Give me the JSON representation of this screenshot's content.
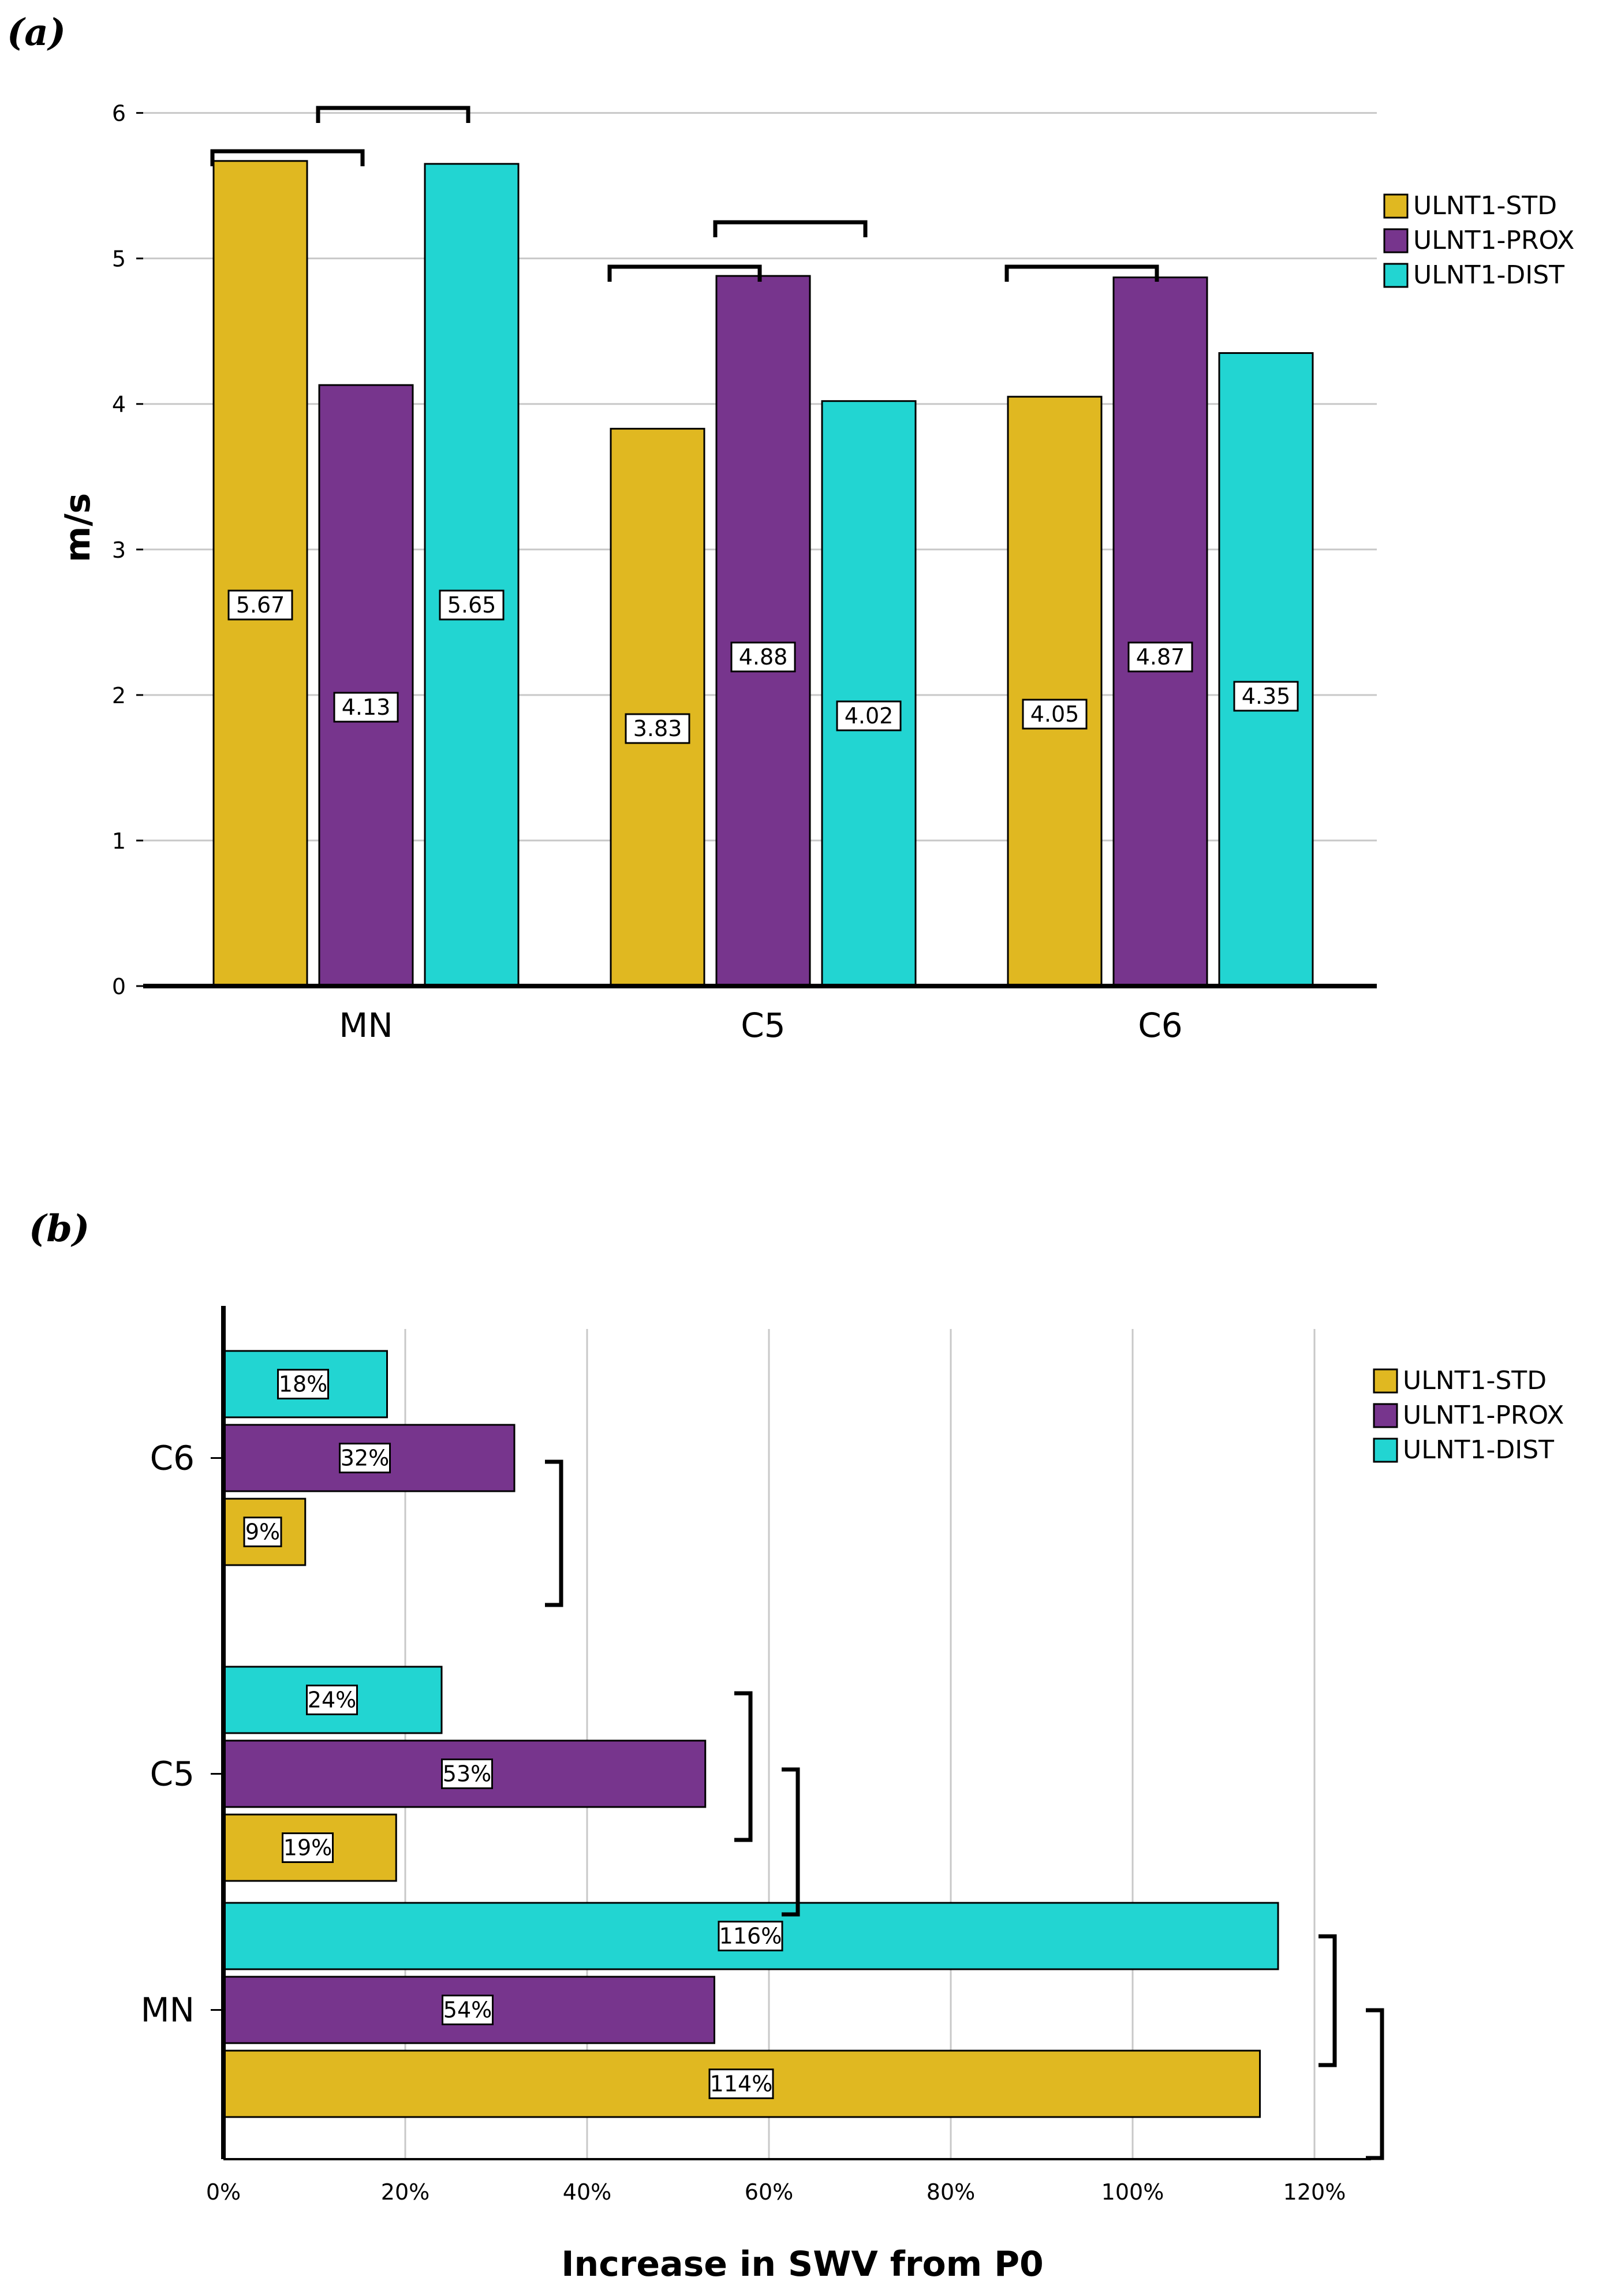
{
  "colors": {
    "ULNT1-STD": "#E0B821",
    "ULNT1-PROX": "#77358D",
    "ULNT1-DIST": "#22D5D2",
    "grid": "#c8c8c8",
    "axis": "#000000"
  },
  "chart_data": [
    {
      "type": "bar",
      "panel": "(a)",
      "orientation": "vertical",
      "categories": [
        "MN",
        "C5",
        "C6"
      ],
      "series": [
        {
          "name": "ULNT1-STD",
          "values": [
            5.67,
            3.83,
            4.05
          ],
          "labels": [
            "5.67",
            "3.83",
            "4.05"
          ]
        },
        {
          "name": "ULNT1-PROX",
          "values": [
            4.13,
            4.88,
            4.87
          ],
          "labels": [
            "4.13",
            "4.88",
            "4.87"
          ]
        },
        {
          "name": "ULNT1-DIST",
          "values": [
            5.65,
            4.02,
            4.35
          ],
          "labels": [
            "5.65",
            "4.02",
            "4.35"
          ]
        }
      ],
      "ylabel": "m/s",
      "xlabel": "",
      "ylim": [
        0,
        6.3
      ],
      "yticks": [
        "0",
        "1",
        "2",
        "3",
        "4",
        "5",
        "6"
      ],
      "grid": true,
      "legend_position": "top-right",
      "significance_brackets": [
        {
          "category": "MN",
          "from": "ULNT1-STD",
          "to": "ULNT1-PROX"
        },
        {
          "category": "MN",
          "from": "ULNT1-PROX",
          "to": "ULNT1-DIST"
        },
        {
          "category": "C5",
          "from": "ULNT1-STD",
          "to": "ULNT1-PROX"
        },
        {
          "category": "C5",
          "from": "ULNT1-PROX",
          "to": "ULNT1-DIST"
        },
        {
          "category": "C6",
          "from": "ULNT1-STD",
          "to": "ULNT1-PROX"
        }
      ]
    },
    {
      "type": "bar",
      "panel": "(b)",
      "orientation": "horizontal",
      "categories": [
        "C6",
        "C5",
        "MN"
      ],
      "series": [
        {
          "name": "ULNT1-STD",
          "values": [
            9,
            19,
            114
          ],
          "labels": [
            "9%",
            "19%",
            "114%"
          ]
        },
        {
          "name": "ULNT1-PROX",
          "values": [
            32,
            53,
            54
          ],
          "labels": [
            "32%",
            "53%",
            "54%"
          ]
        },
        {
          "name": "ULNT1-DIST",
          "values": [
            18,
            24,
            116
          ],
          "labels": [
            "18%",
            "24%",
            "116%"
          ]
        }
      ],
      "xlabel": "Increase in SWV from P0",
      "ylabel": "",
      "xlim": [
        0,
        126
      ],
      "xticks": [
        "0%",
        "20%",
        "40%",
        "60%",
        "80%",
        "100%",
        "120%"
      ],
      "grid": true,
      "legend_position": "top-right",
      "significance_brackets": [
        {
          "category": "C6",
          "from": "ULNT1-PROX",
          "to": "ULNT1-STD"
        },
        {
          "category": "C5",
          "from": "ULNT1-DIST",
          "to": "ULNT1-PROX"
        },
        {
          "category": "C5",
          "from": "ULNT1-PROX",
          "to": "ULNT1-STD"
        },
        {
          "category": "MN",
          "from": "ULNT1-DIST",
          "to": "ULNT1-PROX"
        },
        {
          "category": "MN",
          "from": "ULNT1-PROX",
          "to": "ULNT1-STD"
        }
      ]
    }
  ]
}
